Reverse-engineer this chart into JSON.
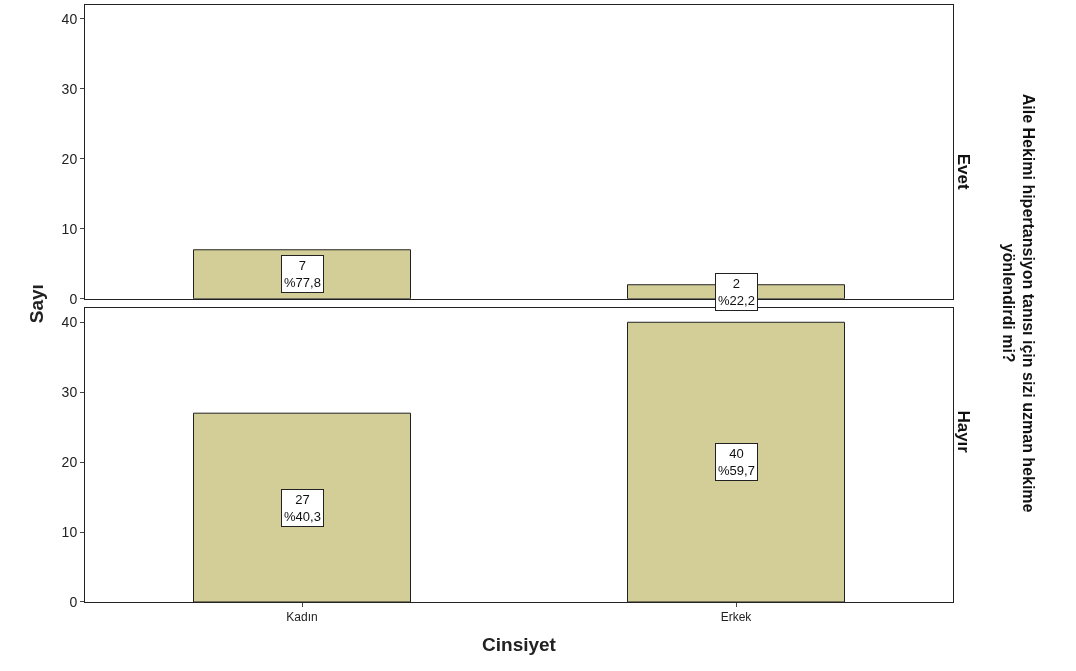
{
  "chart_data": [
    {
      "type": "bar",
      "title": "Evet",
      "ylabel": "Sayı",
      "annotations": [
        "Aile Hekimi hipertansiyon tanısı için sizi uzman hekime yönlendirdi mi?"
      ],
      "categories": [
        null,
        null
      ],
      "values": [
        7,
        2
      ],
      "value_labels": [
        "7\n%77,8",
        "2\n%22,2"
      ],
      "color": "#d3ce97",
      "ylim": [
        0,
        42
      ],
      "yticks": [
        0,
        10,
        20,
        30,
        40
      ],
      "tick_labels": "y"
    },
    {
      "type": "bar",
      "title": "Hayır",
      "xlabel": "Cinsiyet",
      "categories": [
        "Kadın",
        "Erkek"
      ],
      "values": [
        27,
        40
      ],
      "value_labels": [
        "27\n%40,3",
        "40\n%59,7"
      ],
      "color": "#d3ce97",
      "ylim": [
        0,
        42
      ],
      "yticks": [
        0,
        10,
        20,
        30,
        40
      ]
    }
  ]
}
